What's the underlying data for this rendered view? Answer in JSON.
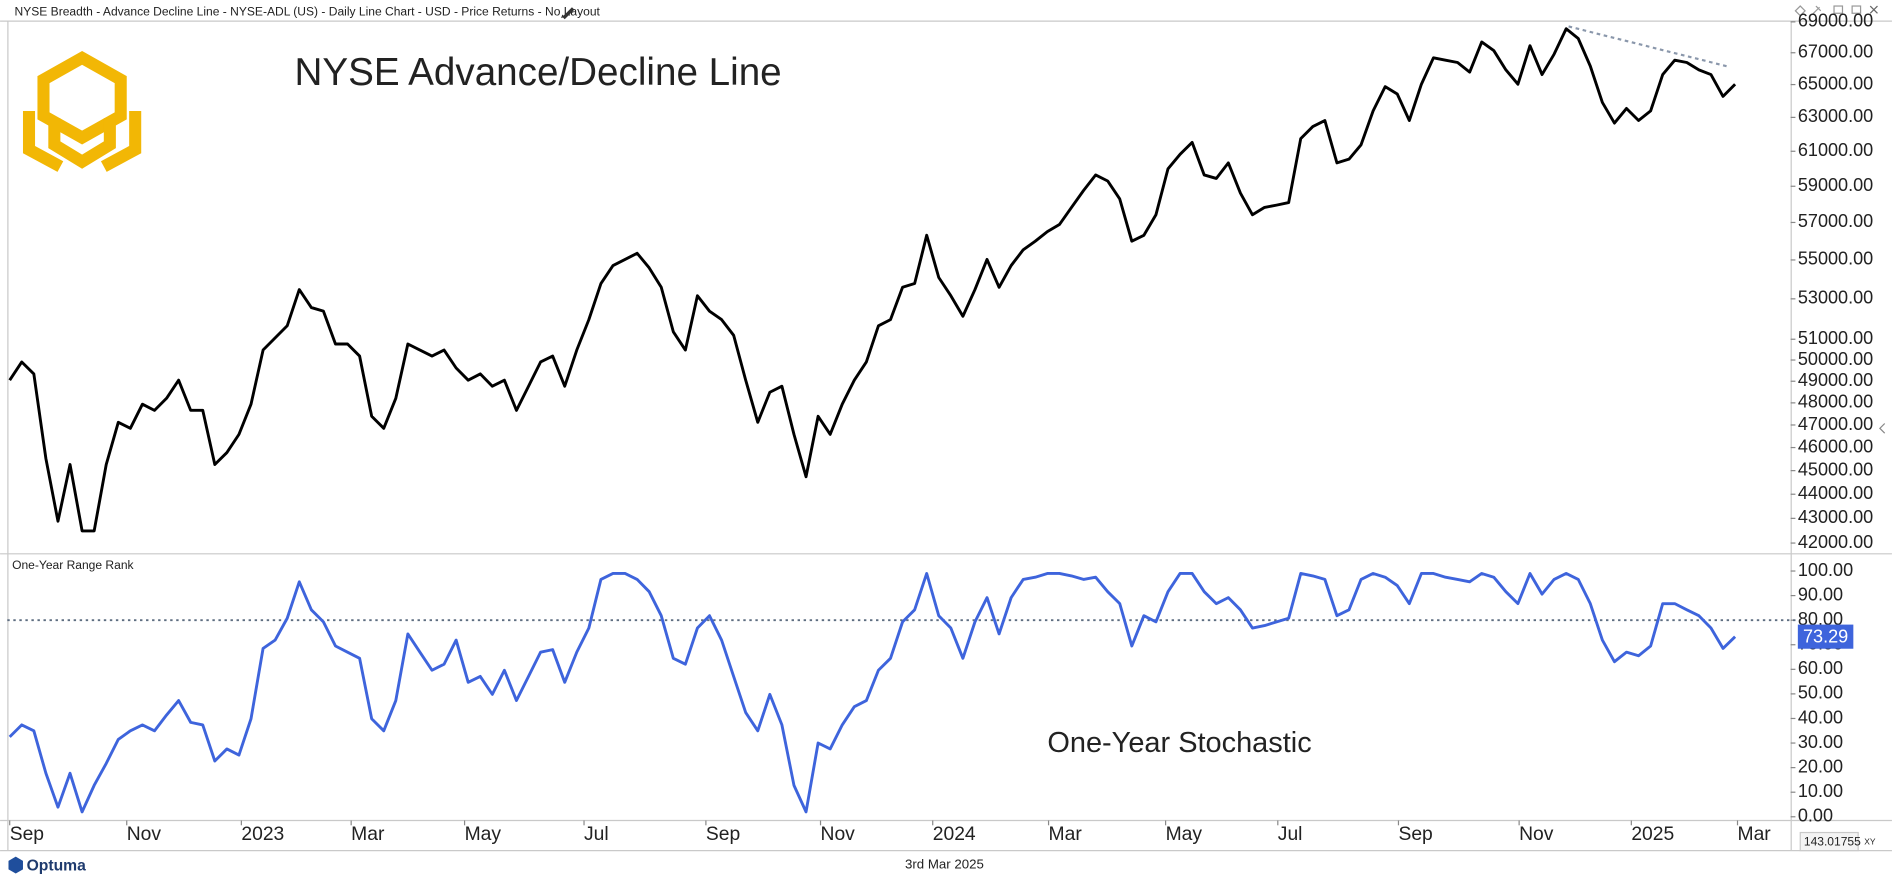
{
  "window": {
    "title": "NYSE Breadth - Advance Decline Line - NYSE-ADL (US) - Daily Line Chart - USD - Price Returns - No Layout"
  },
  "footer": {
    "brand": "Optuma",
    "date": "3rd Mar 2025",
    "readout": "143.01755",
    "readout_mode": "XY"
  },
  "chart_data": [
    {
      "type": "line",
      "title": "NYSE Advance/Decline Line",
      "color": "#000000",
      "log_scale": true,
      "xlim": [
        -0.2,
        147.6
      ],
      "ylim": [
        41620,
        69090
      ],
      "yticks": [
        {
          "value": 42000,
          "label": "42000.00"
        },
        {
          "value": 43000,
          "label": "43000.00"
        },
        {
          "value": 44000,
          "label": "44000.00"
        },
        {
          "value": 45000,
          "label": "45000.00"
        },
        {
          "value": 46000,
          "label": "46000.00"
        },
        {
          "value": 47000,
          "label": "47000.00"
        },
        {
          "value": 48000,
          "label": "48000.00"
        },
        {
          "value": 49000,
          "label": "49000.00"
        },
        {
          "value": 50000,
          "label": "50000.00"
        },
        {
          "value": 51000,
          "label": "51000.00"
        },
        {
          "value": 53000,
          "label": "53000.00"
        },
        {
          "value": 55000,
          "label": "55000.00"
        },
        {
          "value": 57000,
          "label": "57000.00"
        },
        {
          "value": 59000,
          "label": "59000.00"
        },
        {
          "value": 61000,
          "label": "61000.00"
        },
        {
          "value": 63000,
          "label": "63000.00"
        },
        {
          "value": 65000,
          "label": "65000.00"
        },
        {
          "value": 67000,
          "label": "67000.00"
        },
        {
          "value": 69000,
          "label": "69000.00"
        }
      ],
      "trendline": {
        "x": [
          129.2,
          142.4
        ],
        "values": [
          68700,
          66130
        ],
        "color": "#8a97ab"
      },
      "values": [
        49050,
        49910,
        49340,
        45520,
        42880,
        45260,
        42490,
        42490,
        45260,
        47120,
        46850,
        47940,
        47660,
        48210,
        49050,
        47660,
        47660,
        45260,
        45780,
        46580,
        47940,
        50480,
        51070,
        51660,
        53470,
        52560,
        52380,
        50770,
        50770,
        50190,
        47390,
        46850,
        48210,
        50770,
        50480,
        50190,
        50480,
        49620,
        49050,
        49340,
        48770,
        49050,
        47660,
        48770,
        49910,
        50190,
        48770,
        50480,
        51960,
        53780,
        54710,
        55030,
        55350,
        54590,
        53590,
        51360,
        50480,
        53160,
        52380,
        51960,
        51190,
        49050,
        47120,
        48490,
        48770,
        46580,
        44740,
        47390,
        46580,
        47940,
        49050,
        49910,
        51660,
        51960,
        53590,
        53780,
        56310,
        54090,
        53160,
        52130,
        53470,
        55030,
        53590,
        54710,
        55540,
        55990,
        56500,
        56890,
        57820,
        58760,
        59640,
        59300,
        58290,
        55990,
        56310,
        57420,
        59990,
        60820,
        61520,
        59640,
        59440,
        60330,
        58620,
        57420,
        57820,
        57950,
        58090,
        61740,
        62450,
        62810,
        60330,
        60540,
        61380,
        63390,
        64870,
        64420,
        62810,
        65020,
        66680,
        66530,
        66380,
        65770,
        67690,
        67140,
        65920,
        65020,
        67450,
        65620,
        66910,
        68550,
        67920,
        66150,
        63900,
        62660,
        63540,
        62810,
        63390,
        65620,
        66530,
        66380,
        65920,
        65620,
        64270,
        65020
      ]
    },
    {
      "type": "line",
      "title": "One-Year Range Rank",
      "annotation": "One-Year Stochastic",
      "color": "#3e64dc",
      "value_badge": true,
      "xlim": [
        -0.2,
        147.6
      ],
      "ylim": [
        -1.5,
        107
      ],
      "reference_line": 80,
      "yticks": [
        {
          "value": 0,
          "label": "0.00"
        },
        {
          "value": 10,
          "label": "10.00"
        },
        {
          "value": 20,
          "label": "20.00"
        },
        {
          "value": 30,
          "label": "30.00"
        },
        {
          "value": 40,
          "label": "40.00"
        },
        {
          "value": 50,
          "label": "50.00"
        },
        {
          "value": 60,
          "label": "60.00"
        },
        {
          "value": 70,
          "label": "70.00"
        },
        {
          "value": 80,
          "label": "80.00"
        },
        {
          "value": 90,
          "label": "90.00"
        },
        {
          "value": 100,
          "label": "100.00"
        }
      ],
      "xticks": [
        {
          "value": 0,
          "label": "Sep"
        },
        {
          "value": 9.7,
          "label": "Nov"
        },
        {
          "value": 19.2,
          "label": "2023"
        },
        {
          "value": 28.3,
          "label": "Mar"
        },
        {
          "value": 37.7,
          "label": "May"
        },
        {
          "value": 47.6,
          "label": "Jul"
        },
        {
          "value": 57.7,
          "label": "Sep"
        },
        {
          "value": 67.2,
          "label": "Nov"
        },
        {
          "value": 76.5,
          "label": "2024"
        },
        {
          "value": 86.1,
          "label": "Mar"
        },
        {
          "value": 95.8,
          "label": "May"
        },
        {
          "value": 105.1,
          "label": "Jul"
        },
        {
          "value": 115.1,
          "label": "Sep"
        },
        {
          "value": 125.1,
          "label": "Nov"
        },
        {
          "value": 134.4,
          "label": "2025"
        },
        {
          "value": 143.2,
          "label": "Mar"
        }
      ],
      "values": [
        32.5,
        37.4,
        35,
        17.7,
        3.9,
        17.7,
        2,
        12.8,
        21.7,
        31.5,
        35,
        37.4,
        35,
        41.4,
        47.3,
        38.4,
        37.4,
        22.7,
        27.6,
        25.1,
        39.9,
        68.5,
        71.9,
        80.8,
        95.6,
        84.2,
        79.3,
        69.5,
        67,
        64.5,
        39.9,
        35,
        47.3,
        74.4,
        67,
        59.6,
        62.1,
        71.9,
        54.7,
        57.1,
        49.8,
        59.6,
        47.3,
        57.1,
        67,
        68,
        54.7,
        67,
        76.8,
        96.6,
        99,
        99,
        96.6,
        91.6,
        81.8,
        64.5,
        62.1,
        76.8,
        81.8,
        71.9,
        57.1,
        42.4,
        35,
        49.8,
        37.4,
        12.8,
        2,
        30,
        27.6,
        37.4,
        44.8,
        47.3,
        59.6,
        64.5,
        79.3,
        84.2,
        99,
        81.8,
        76.8,
        64.5,
        79.3,
        89.2,
        74.4,
        89.2,
        96.6,
        97.5,
        99,
        99,
        98,
        96.6,
        97.5,
        91.6,
        86.7,
        69.5,
        81.8,
        79.3,
        91.6,
        99,
        99,
        91.6,
        86.7,
        89.2,
        84.2,
        76.8,
        77.8,
        79.3,
        80.8,
        99,
        98,
        96.6,
        81.8,
        84.2,
        96.6,
        99,
        97.5,
        94.1,
        86.7,
        99,
        99,
        97.5,
        96.6,
        95.6,
        99,
        97.5,
        91.6,
        86.7,
        99,
        90.6,
        96.6,
        99,
        96.6,
        86.7,
        71.9,
        63.1,
        67,
        65.5,
        69.5,
        86.7,
        86.7,
        84.2,
        81.8,
        76.8,
        68.5,
        73.29
      ]
    }
  ]
}
